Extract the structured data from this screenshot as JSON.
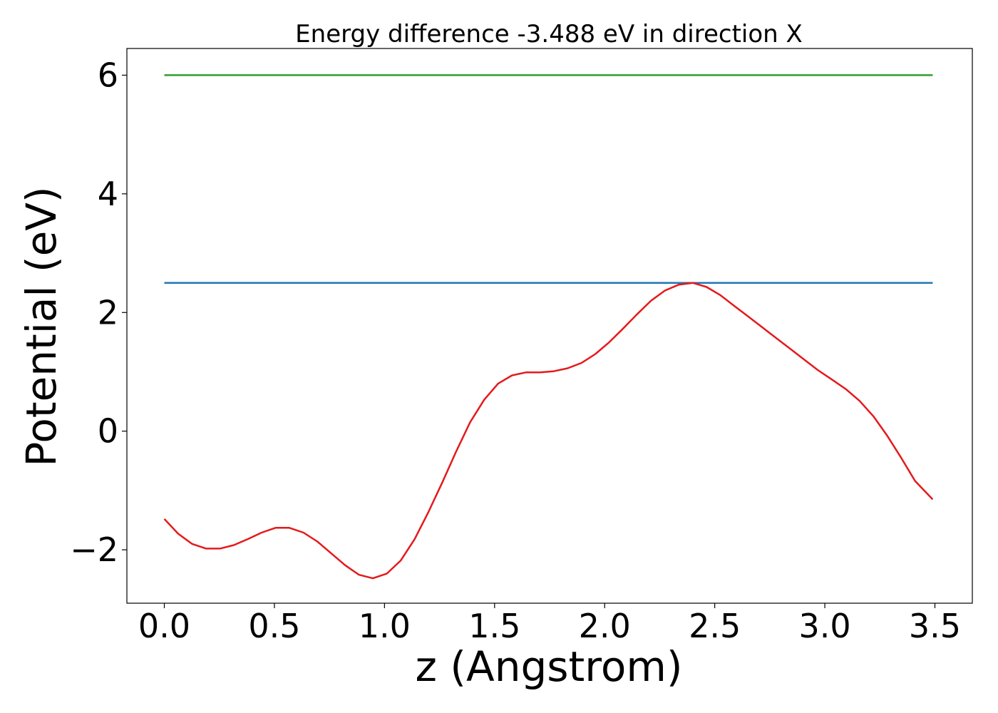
{
  "chart_data": {
    "type": "line",
    "title": "Energy difference -3.488 eV in direction X",
    "xlabel": "z (Angstrom)",
    "ylabel": "Potential (eV)",
    "xlim": [
      -0.17,
      3.67
    ],
    "ylim": [
      -2.9,
      6.45
    ],
    "xticks": [
      0.0,
      0.5,
      1.0,
      1.5,
      2.0,
      2.5,
      3.0,
      3.5
    ],
    "xtick_labels": [
      "0.0",
      "0.5",
      "1.0",
      "1.5",
      "2.0",
      "2.5",
      "3.0",
      "3.5"
    ],
    "yticks": [
      -2,
      0,
      2,
      4,
      6
    ],
    "ytick_labels": [
      "−2",
      "0",
      "2",
      "4",
      "6"
    ],
    "grid": false,
    "series": [
      {
        "color": "#2ca02c",
        "x": [
          0.0,
          3.49
        ],
        "y": [
          6.0,
          6.0
        ]
      },
      {
        "color": "#1f77b4",
        "x": [
          0.0,
          3.49
        ],
        "y": [
          2.5,
          2.5
        ]
      },
      {
        "color": "#e41a1c",
        "x": [
          0.0,
          0.063,
          0.126,
          0.19,
          0.253,
          0.316,
          0.379,
          0.442,
          0.505,
          0.568,
          0.632,
          0.695,
          0.758,
          0.821,
          0.884,
          0.947,
          1.011,
          1.074,
          1.137,
          1.2,
          1.263,
          1.326,
          1.389,
          1.453,
          1.516,
          1.579,
          1.642,
          1.705,
          1.768,
          1.832,
          1.895,
          1.958,
          2.021,
          2.084,
          2.147,
          2.211,
          2.274,
          2.337,
          2.4,
          2.463,
          2.526,
          2.589,
          2.653,
          2.716,
          2.779,
          2.842,
          2.905,
          2.968,
          3.032,
          3.095,
          3.158,
          3.221,
          3.284,
          3.347,
          3.41,
          3.49
        ],
        "y": [
          -1.48,
          -1.73,
          -1.9,
          -1.98,
          -1.98,
          -1.92,
          -1.82,
          -1.71,
          -1.63,
          -1.63,
          -1.71,
          -1.86,
          -2.06,
          -2.26,
          -2.42,
          -2.48,
          -2.4,
          -2.18,
          -1.82,
          -1.36,
          -0.86,
          -0.34,
          0.15,
          0.53,
          0.8,
          0.94,
          0.99,
          0.99,
          1.01,
          1.06,
          1.15,
          1.3,
          1.5,
          1.73,
          1.97,
          2.2,
          2.37,
          2.47,
          2.5,
          2.43,
          2.29,
          2.11,
          1.93,
          1.75,
          1.57,
          1.39,
          1.21,
          1.03,
          0.87,
          0.71,
          0.51,
          0.25,
          -0.08,
          -0.45,
          -0.84,
          -1.15
        ]
      }
    ]
  }
}
